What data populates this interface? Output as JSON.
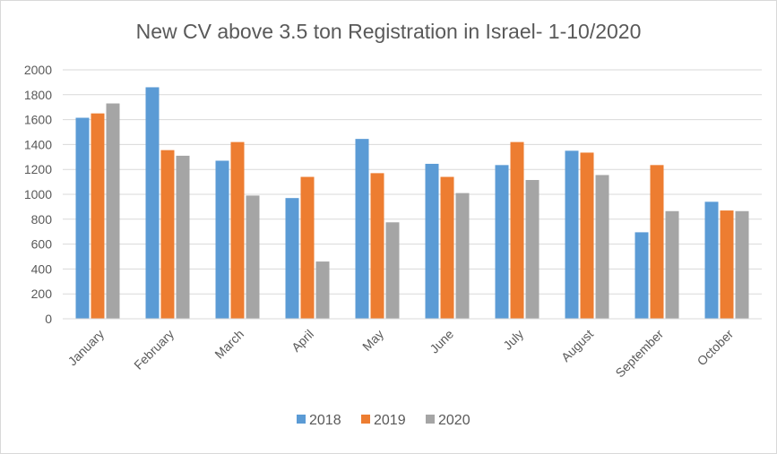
{
  "chart_data": {
    "type": "bar",
    "title": "New CV above 3.5 ton Registration in Israel- 1-10/2020",
    "xlabel": "",
    "ylabel": "",
    "categories": [
      "January",
      "February",
      "March",
      "April",
      "May",
      "June",
      "July",
      "August",
      "September",
      "October"
    ],
    "series": [
      {
        "name": "2018",
        "color": "#5b9bd5",
        "values": [
          1615,
          1860,
          1270,
          970,
          1445,
          1245,
          1235,
          1350,
          695,
          940
        ]
      },
      {
        "name": "2019",
        "color": "#ed7d31",
        "values": [
          1650,
          1355,
          1420,
          1140,
          1170,
          1140,
          1420,
          1335,
          1235,
          870
        ]
      },
      {
        "name": "2020",
        "color": "#a5a5a5",
        "values": [
          1730,
          1310,
          990,
          460,
          775,
          1010,
          1115,
          1155,
          865,
          865
        ]
      }
    ],
    "ylim": [
      0,
      2000
    ],
    "yticks": [
      0,
      200,
      400,
      600,
      800,
      1000,
      1200,
      1400,
      1600,
      1800,
      2000
    ],
    "grid": true,
    "legend_position": "bottom"
  }
}
